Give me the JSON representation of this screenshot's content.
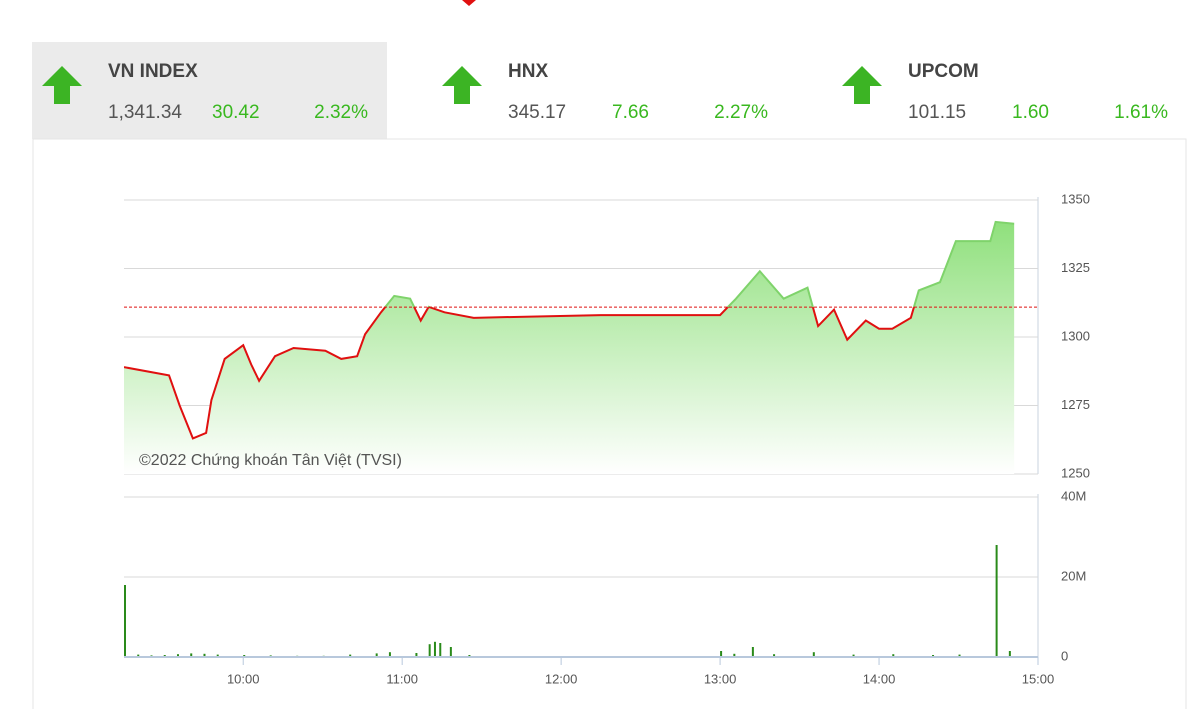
{
  "indices": [
    {
      "name": "VN INDEX",
      "value": "1,341.34",
      "change": "30.42",
      "percent": "2.32%"
    },
    {
      "name": "HNX",
      "value": "345.17",
      "change": "7.66",
      "percent": "2.27%"
    },
    {
      "name": "UPCOM",
      "value": "101.15",
      "change": "1.60",
      "percent": "1.61%"
    }
  ],
  "chart_data": [
    {
      "type": "area",
      "annotation": "©2022 Chứng khoán Tân Việt (TVSI)",
      "x": [
        555,
        572,
        576,
        581,
        586,
        588,
        593,
        600,
        603,
        606,
        612,
        619,
        631,
        637,
        643,
        646,
        652,
        657,
        663,
        667,
        670,
        676,
        687,
        735,
        780,
        786,
        795,
        804,
        813,
        817,
        823,
        828,
        835,
        840,
        845,
        852,
        855,
        863,
        869,
        882,
        884,
        891
      ],
      "values": [
        1289,
        1286,
        1275,
        1263,
        1265,
        1277,
        1292,
        1297,
        1290,
        1284,
        1293,
        1296,
        1295,
        1292,
        1293,
        1301,
        1309,
        1315,
        1314,
        1306,
        1311,
        1309,
        1307,
        1308,
        1308,
        1314,
        1324,
        1314,
        1318,
        1304,
        1310,
        1299,
        1306,
        1303,
        1303,
        1307,
        1317,
        1320,
        1335,
        1335,
        1342,
        1341.34
      ],
      "reference_line": 1310.92,
      "color": "#e01010",
      "up_color": "#7fd36b",
      "xlim": [
        555,
        900
      ],
      "xticks": [
        {
          "value": 600,
          "label": "10:00"
        },
        {
          "value": 660,
          "label": "11:00"
        },
        {
          "value": 720,
          "label": "12:00"
        },
        {
          "value": 780,
          "label": "13:00"
        },
        {
          "value": 840,
          "label": "14:00"
        },
        {
          "value": 900,
          "label": "15:00"
        }
      ],
      "ylim": [
        1250,
        1350
      ],
      "yticks": [
        1250,
        1275,
        1300,
        1325,
        1350
      ],
      "grid": true
    },
    {
      "type": "bar",
      "color": "#2a8a1a",
      "x": [
        555,
        560,
        565,
        570,
        575,
        580,
        585,
        590,
        600,
        610,
        620,
        630,
        640,
        650,
        655,
        665,
        670,
        672,
        674,
        678,
        685,
        780,
        785,
        792,
        800,
        815,
        830,
        845,
        860,
        870,
        884,
        889
      ],
      "values": [
        18,
        0.6,
        0.4,
        0.5,
        0.7,
        0.9,
        0.8,
        0.6,
        0.5,
        0.4,
        0.3,
        0.3,
        0.6,
        0.9,
        1.2,
        1.0,
        3.2,
        3.8,
        3.5,
        2.5,
        0.5,
        1.5,
        0.8,
        2.5,
        0.7,
        1.2,
        0.6,
        0.7,
        0.5,
        0.6,
        28,
        1.5
      ],
      "xlim": [
        555,
        900
      ],
      "ylim": [
        0,
        40
      ],
      "yticks": [
        0,
        {
          "value": 20,
          "label": "20M"
        },
        {
          "value": 40,
          "label": "40M"
        }
      ],
      "grid": true
    }
  ]
}
